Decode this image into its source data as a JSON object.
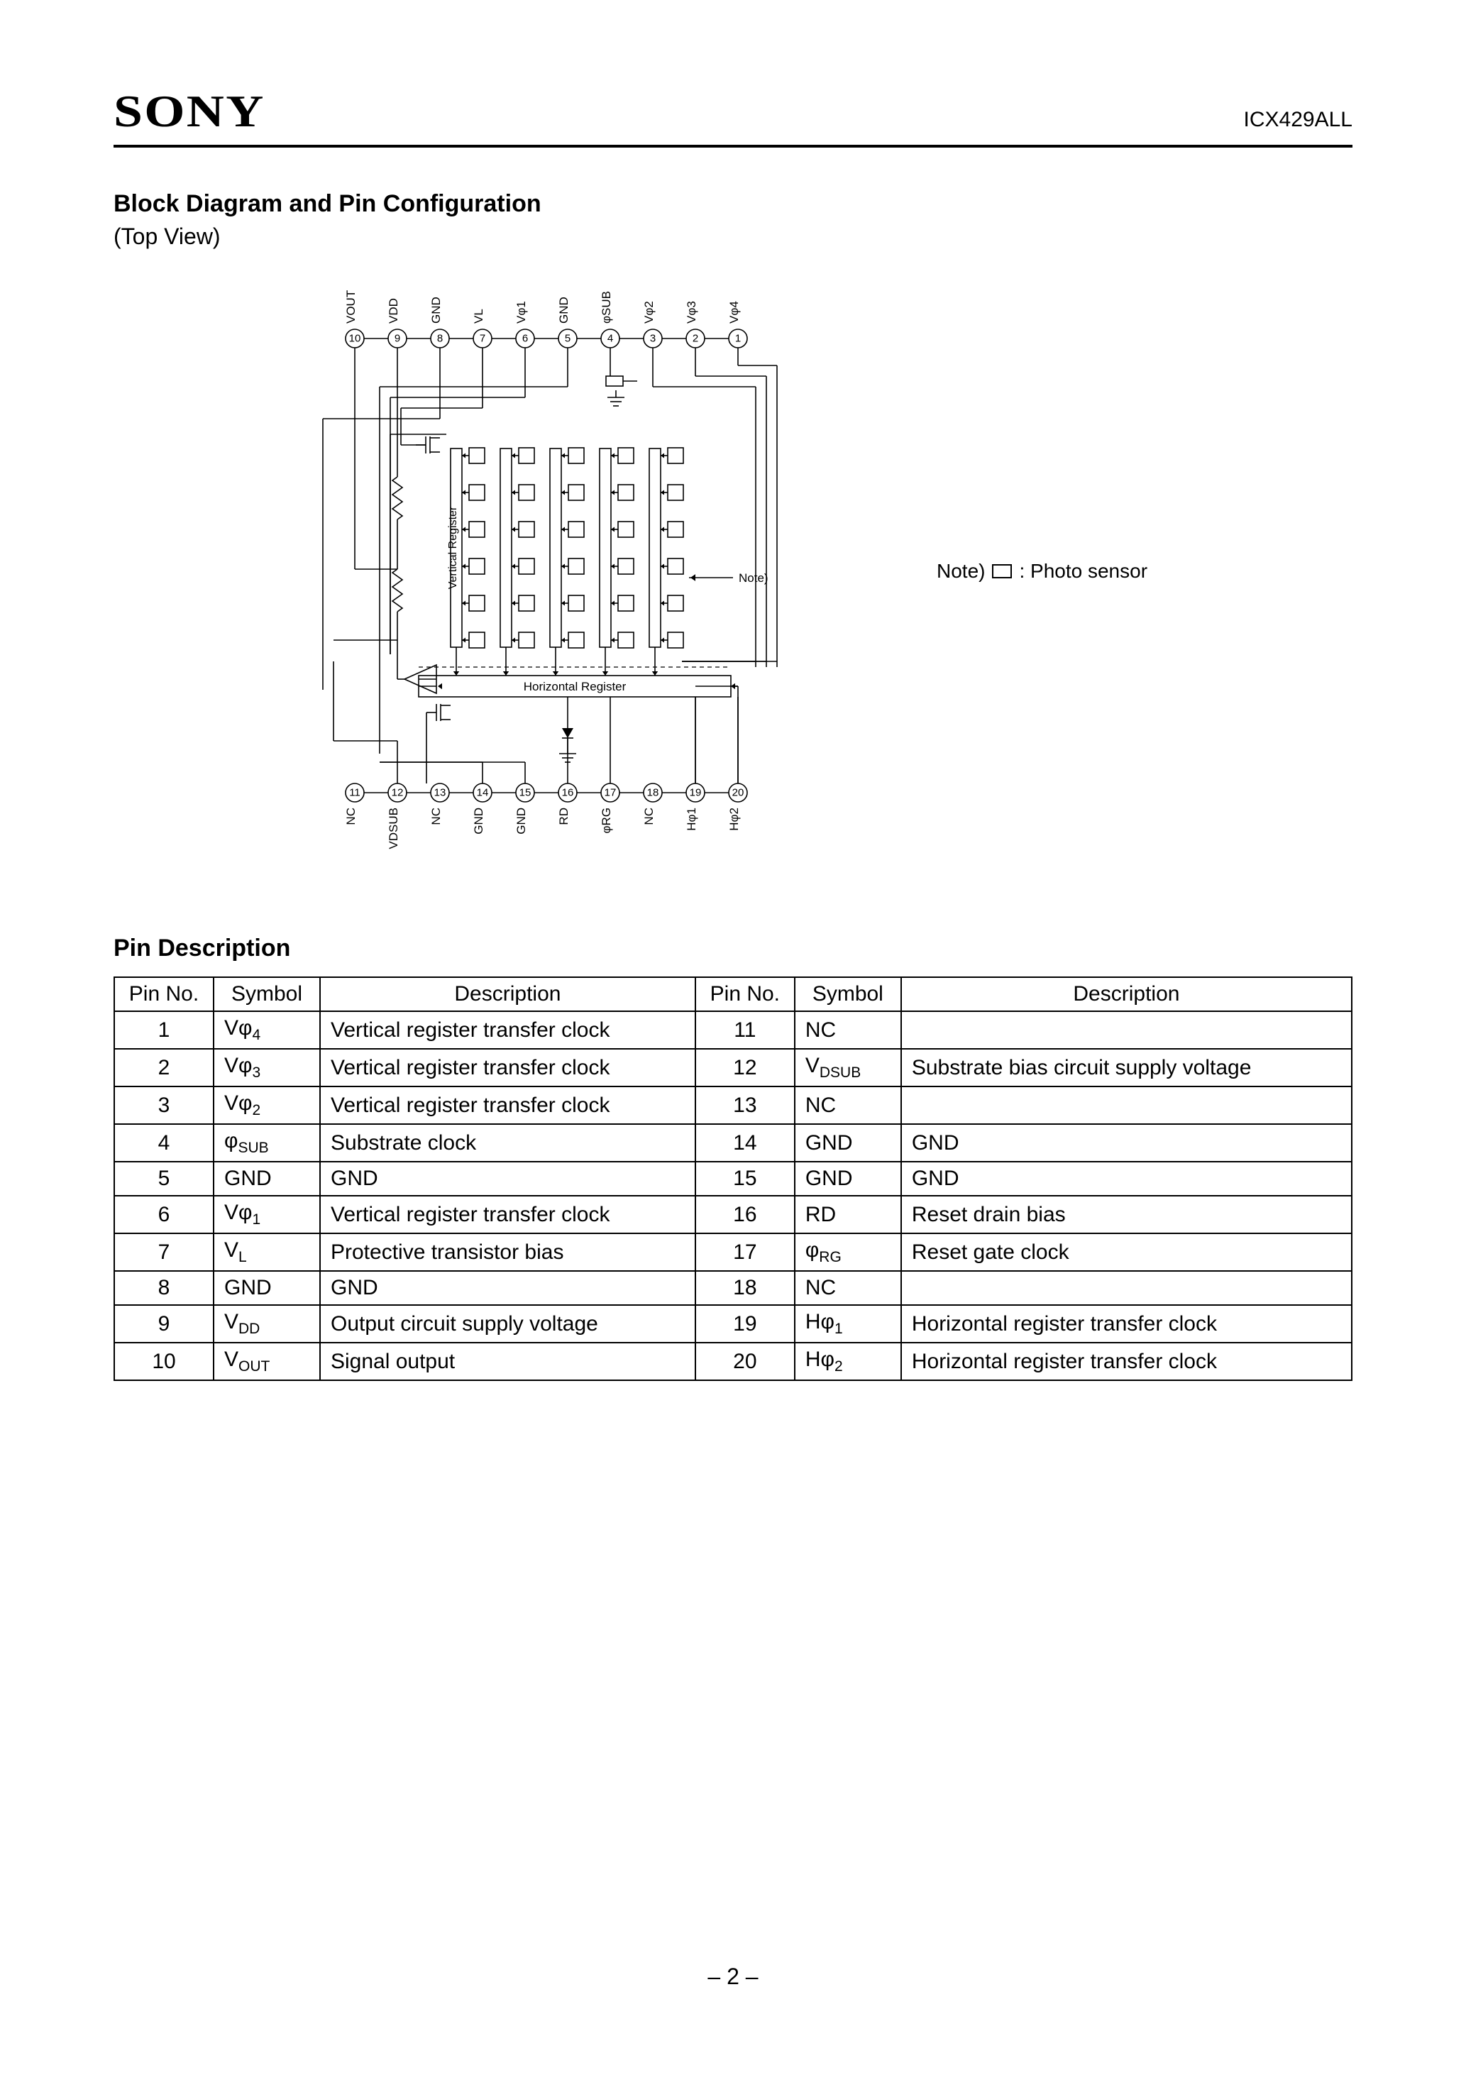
{
  "header": {
    "brand": "SONY",
    "part_number": "ICX429ALL"
  },
  "section1": {
    "title": "Block Diagram and Pin Configuration",
    "subtitle": "(Top View)"
  },
  "diagram": {
    "type": "block-diagram",
    "background_color": "#ffffff",
    "line_color": "#000000",
    "line_width": 1.6,
    "top_pins": [
      {
        "num": 10,
        "label": "VOUT"
      },
      {
        "num": 9,
        "label": "VDD"
      },
      {
        "num": 8,
        "label": "GND"
      },
      {
        "num": 7,
        "label": "VL"
      },
      {
        "num": 6,
        "label": "Vφ1"
      },
      {
        "num": 5,
        "label": "GND"
      },
      {
        "num": 4,
        "label": "φSUB"
      },
      {
        "num": 3,
        "label": "Vφ2"
      },
      {
        "num": 2,
        "label": "Vφ3"
      },
      {
        "num": 1,
        "label": "Vφ4"
      }
    ],
    "bottom_pins": [
      {
        "num": 11,
        "label": "NC"
      },
      {
        "num": 12,
        "label": "VDSUB"
      },
      {
        "num": 13,
        "label": "NC"
      },
      {
        "num": 14,
        "label": "GND"
      },
      {
        "num": 15,
        "label": "GND"
      },
      {
        "num": 16,
        "label": "RD"
      },
      {
        "num": 17,
        "label": "φRG"
      },
      {
        "num": 18,
        "label": "NC"
      },
      {
        "num": 19,
        "label": "Hφ1"
      },
      {
        "num": 20,
        "label": "Hφ2"
      }
    ],
    "internal_labels": {
      "vertical_register": "Vertical Register",
      "horizontal_register": "Horizontal Register",
      "note_arrow": "Note)"
    },
    "legend": {
      "prefix": "Note)",
      "text": ": Photo sensor"
    },
    "pin_spacing": 60,
    "pin_radius": 13,
    "columns": 5,
    "rows": 6,
    "cell_size": 22
  },
  "section2": {
    "title": "Pin Description"
  },
  "pin_table": {
    "headers": [
      "Pin No.",
      "Symbol",
      "Description",
      "Pin No.",
      "Symbol",
      "Description"
    ],
    "rows_left": [
      {
        "no": "1",
        "sym": "Vφ4",
        "desc": "Vertical register transfer clock"
      },
      {
        "no": "2",
        "sym": "Vφ3",
        "desc": "Vertical register transfer clock"
      },
      {
        "no": "3",
        "sym": "Vφ2",
        "desc": "Vertical register transfer clock"
      },
      {
        "no": "4",
        "sym": "φSUB",
        "desc": "Substrate clock"
      },
      {
        "no": "5",
        "sym": "GND",
        "desc": "GND"
      },
      {
        "no": "6",
        "sym": "Vφ1",
        "desc": "Vertical register transfer clock"
      },
      {
        "no": "7",
        "sym": "VL",
        "desc": "Protective transistor bias"
      },
      {
        "no": "8",
        "sym": "GND",
        "desc": "GND"
      },
      {
        "no": "9",
        "sym": "VDD",
        "desc": "Output circuit supply voltage"
      },
      {
        "no": "10",
        "sym": "VOUT",
        "desc": "Signal output"
      }
    ],
    "rows_right": [
      {
        "no": "11",
        "sym": "NC",
        "desc": ""
      },
      {
        "no": "12",
        "sym": "VDSUB",
        "desc": "Substrate bias circuit supply voltage"
      },
      {
        "no": "13",
        "sym": "NC",
        "desc": ""
      },
      {
        "no": "14",
        "sym": "GND",
        "desc": "GND"
      },
      {
        "no": "15",
        "sym": "GND",
        "desc": "GND"
      },
      {
        "no": "16",
        "sym": "RD",
        "desc": "Reset drain bias"
      },
      {
        "no": "17",
        "sym": "φRG",
        "desc": "Reset gate clock"
      },
      {
        "no": "18",
        "sym": "NC",
        "desc": ""
      },
      {
        "no": "19",
        "sym": "Hφ1",
        "desc": "Horizontal register transfer clock"
      },
      {
        "no": "20",
        "sym": "Hφ2",
        "desc": "Horizontal register transfer clock"
      }
    ]
  },
  "page_number": "– 2 –"
}
